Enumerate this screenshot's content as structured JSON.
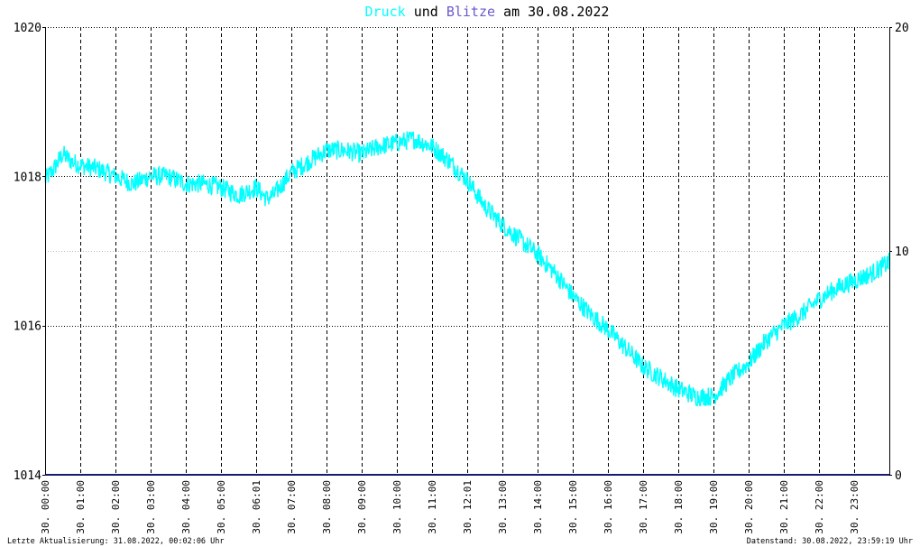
{
  "title": {
    "part1": "Druck",
    "part2": " und ",
    "part3": "Blitze",
    "part4": " am 30.08.2022",
    "color_druck": "#00ffff",
    "color_blitze": "#6a5acd",
    "color_text": "#000000"
  },
  "footer": {
    "left": "Letzte Aktualisierung: 31.08.2022, 00:02:06 Uhr",
    "right": "Datenstand: 30.08.2022, 23:59:19 Uhr"
  },
  "chart_data": {
    "type": "line",
    "title": "Druck und Blitze am 30.08.2022",
    "xlabel": "",
    "ylabel": "",
    "grid": true,
    "x_range_hours": [
      0,
      24
    ],
    "ylim_left": [
      1014,
      1020
    ],
    "ylim_right": [
      0,
      20
    ],
    "y_ticks_left": [
      "1014",
      "1016",
      "1018",
      "1020"
    ],
    "y_ticks_right": [
      "0",
      "10",
      "20"
    ],
    "x_ticks": [
      "30. 00:00",
      "30. 01:00",
      "30. 02:00",
      "30. 03:00",
      "30. 04:00",
      "30. 05:00",
      "30. 06:01",
      "30. 07:00",
      "30. 08:00",
      "30. 09:00",
      "30. 10:00",
      "30. 11:00",
      "30. 12:01",
      "30. 13:00",
      "30. 14:00",
      "30. 15:00",
      "30. 16:00",
      "30. 17:00",
      "30. 18:00",
      "30. 19:00",
      "30. 20:00",
      "30. 21:00",
      "30. 22:00",
      "30. 23:00"
    ],
    "series": [
      {
        "name": "Druck",
        "axis": "left",
        "color": "#00ffff",
        "x": [
          0,
          0.25,
          0.5,
          0.75,
          1,
          1.5,
          2,
          2.5,
          3,
          3.5,
          4,
          4.5,
          5,
          5.5,
          6,
          6.3,
          6.5,
          7,
          7.5,
          8,
          8.5,
          9,
          9.5,
          10,
          10.5,
          11,
          11.5,
          12,
          12.5,
          13,
          13.5,
          14,
          14.5,
          15,
          15.5,
          16,
          16.5,
          17,
          17.5,
          18,
          18.5,
          19,
          19.5,
          20,
          20.5,
          21,
          21.5,
          22,
          22.5,
          23,
          23.5,
          24
        ],
        "values": [
          1017.95,
          1018.1,
          1018.3,
          1018.2,
          1018.15,
          1018.1,
          1018.0,
          1017.9,
          1018.0,
          1018.0,
          1017.9,
          1017.9,
          1017.85,
          1017.75,
          1017.85,
          1017.7,
          1017.75,
          1018.05,
          1018.2,
          1018.35,
          1018.35,
          1018.3,
          1018.4,
          1018.45,
          1018.5,
          1018.4,
          1018.2,
          1017.95,
          1017.6,
          1017.35,
          1017.15,
          1016.95,
          1016.7,
          1016.4,
          1016.15,
          1015.95,
          1015.7,
          1015.45,
          1015.3,
          1015.15,
          1015.05,
          1015.05,
          1015.3,
          1015.5,
          1015.8,
          1016.0,
          1016.15,
          1016.35,
          1016.5,
          1016.6,
          1016.7,
          1016.85
        ]
      },
      {
        "name": "Blitze",
        "axis": "right",
        "color": "#191970",
        "x": [
          0,
          24
        ],
        "values": [
          0,
          0
        ]
      }
    ]
  }
}
